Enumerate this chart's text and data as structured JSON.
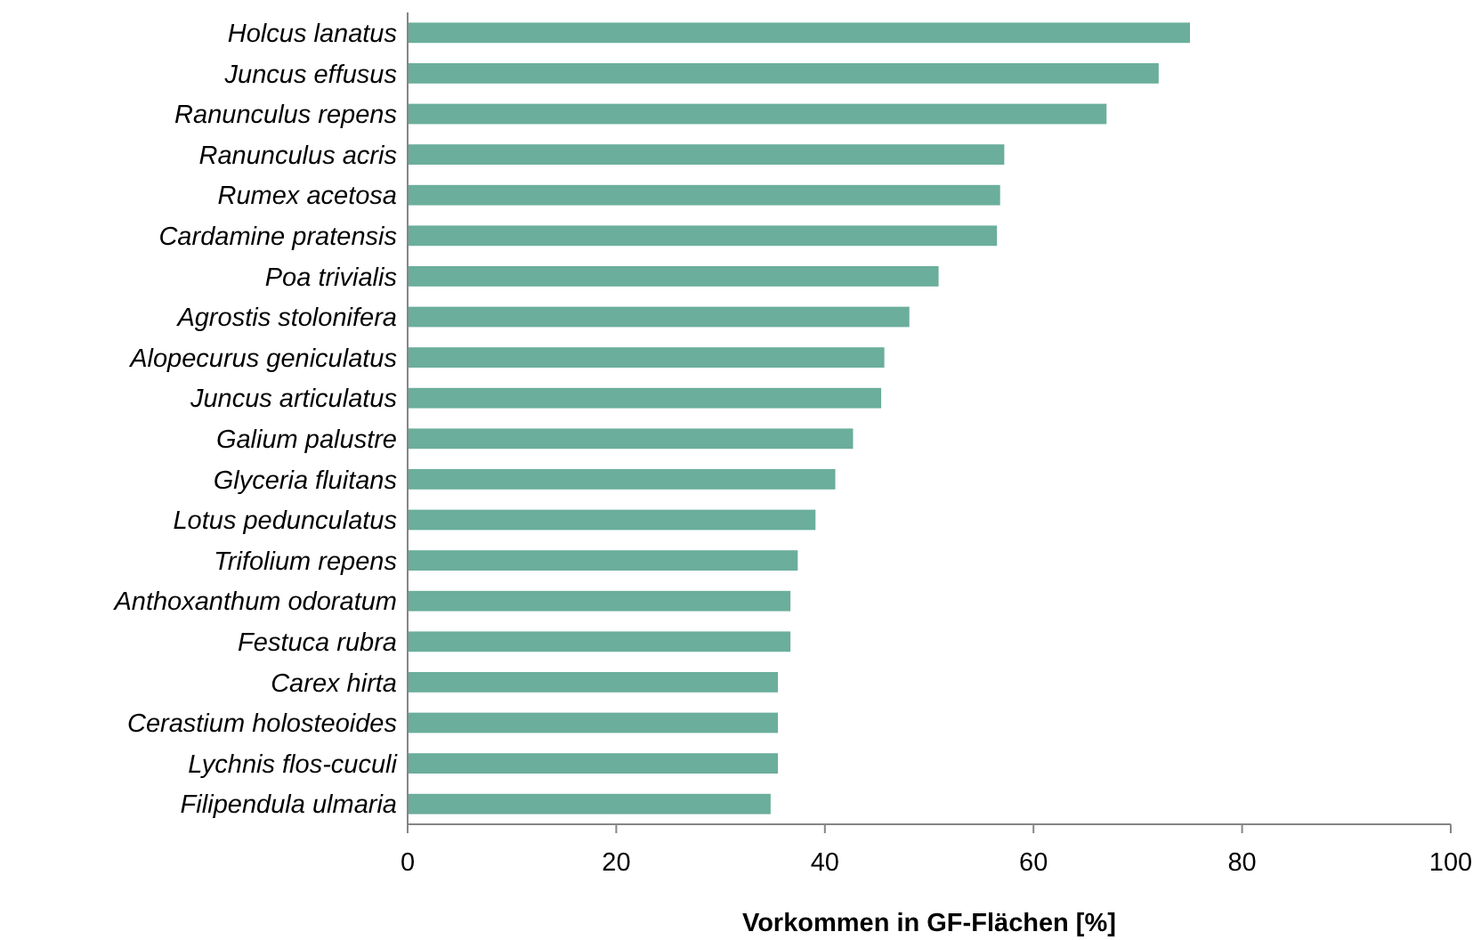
{
  "chart_data": {
    "type": "bar",
    "orientation": "horizontal",
    "xlabel": "Vorkommen in GF-Flächen [%]",
    "categories": [
      "Holcus lanatus",
      "Juncus effusus",
      "Ranunculus repens",
      "Ranunculus acris",
      "Rumex acetosa",
      "Cardamine pratensis",
      "Poa trivialis",
      "Agrostis stolonifera",
      "Alopecurus geniculatus",
      "Juncus articulatus",
      "Galium palustre",
      "Glyceria fluitans",
      "Lotus pedunculatus",
      "Trifolium repens",
      "Anthoxanthum odoratum",
      "Festuca rubra",
      "Carex hirta",
      "Cerastium holosteoides",
      "Lychnis flos-cuculi",
      "Filipendula ulmaria"
    ],
    "values": [
      75,
      72,
      67,
      57.2,
      56.8,
      56.5,
      50.9,
      48.1,
      45.7,
      45.4,
      42.7,
      41,
      39.1,
      37.4,
      36.7,
      36.7,
      35.5,
      35.5,
      35.5,
      34.8
    ],
    "color": "#6aae9b",
    "xlim": [
      0,
      100
    ],
    "xticks": [
      0,
      20,
      40,
      60,
      80,
      100
    ],
    "grid": false
  }
}
